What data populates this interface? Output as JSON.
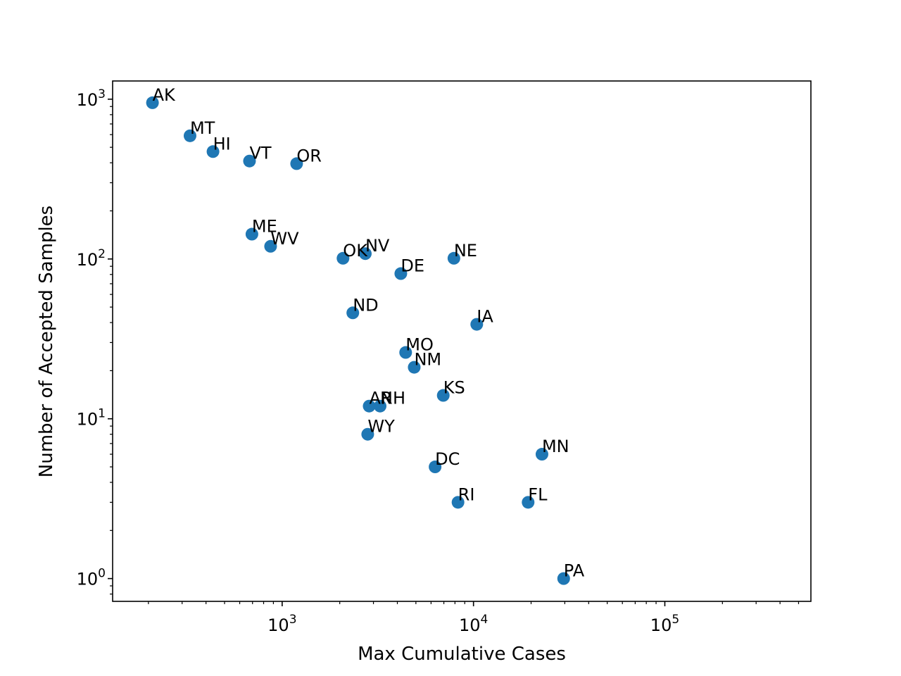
{
  "chart_data": {
    "type": "scatter",
    "title": "",
    "xlabel": "Max Cumulative Cases",
    "ylabel": "Number of Accepted Samples",
    "xscale": "log",
    "yscale": "log",
    "xlim": [
      130,
      580000
    ],
    "ylim": [
      0.72,
      1300
    ],
    "grid": false,
    "color": "#1f77b4",
    "x_ticks": [
      {
        "base": "10",
        "exp": "3",
        "value": 1000
      },
      {
        "base": "10",
        "exp": "4",
        "value": 10000
      },
      {
        "base": "10",
        "exp": "5",
        "value": 100000
      }
    ],
    "y_ticks": [
      {
        "base": "10",
        "exp": "0",
        "value": 1
      },
      {
        "base": "10",
        "exp": "1",
        "value": 10
      },
      {
        "base": "10",
        "exp": "2",
        "value": 100
      },
      {
        "base": "10",
        "exp": "3",
        "value": 1000
      }
    ],
    "points": [
      {
        "label": "AK",
        "x": 210,
        "y": 950
      },
      {
        "label": "MT",
        "x": 330,
        "y": 590
      },
      {
        "label": "HI",
        "x": 435,
        "y": 470
      },
      {
        "label": "VT",
        "x": 675,
        "y": 410
      },
      {
        "label": "OR",
        "x": 1190,
        "y": 395
      },
      {
        "label": "ME",
        "x": 695,
        "y": 143
      },
      {
        "label": "WV",
        "x": 870,
        "y": 120
      },
      {
        "label": "OK",
        "x": 2080,
        "y": 101
      },
      {
        "label": "NV",
        "x": 2720,
        "y": 108
      },
      {
        "label": "DE",
        "x": 4170,
        "y": 81
      },
      {
        "label": "NE",
        "x": 7900,
        "y": 101
      },
      {
        "label": "ND",
        "x": 2340,
        "y": 46
      },
      {
        "label": "IA",
        "x": 10400,
        "y": 39
      },
      {
        "label": "MO",
        "x": 4420,
        "y": 26
      },
      {
        "label": "NM",
        "x": 4900,
        "y": 21
      },
      {
        "label": "KS",
        "x": 6950,
        "y": 14
      },
      {
        "label": "AR",
        "x": 2850,
        "y": 12
      },
      {
        "label": "NH",
        "x": 3250,
        "y": 12
      },
      {
        "label": "WY",
        "x": 2800,
        "y": 8
      },
      {
        "label": "DC",
        "x": 6300,
        "y": 5
      },
      {
        "label": "MN",
        "x": 22800,
        "y": 6
      },
      {
        "label": "RI",
        "x": 8300,
        "y": 3
      },
      {
        "label": "FL",
        "x": 19300,
        "y": 3
      },
      {
        "label": "PA",
        "x": 29600,
        "y": 1
      }
    ]
  }
}
